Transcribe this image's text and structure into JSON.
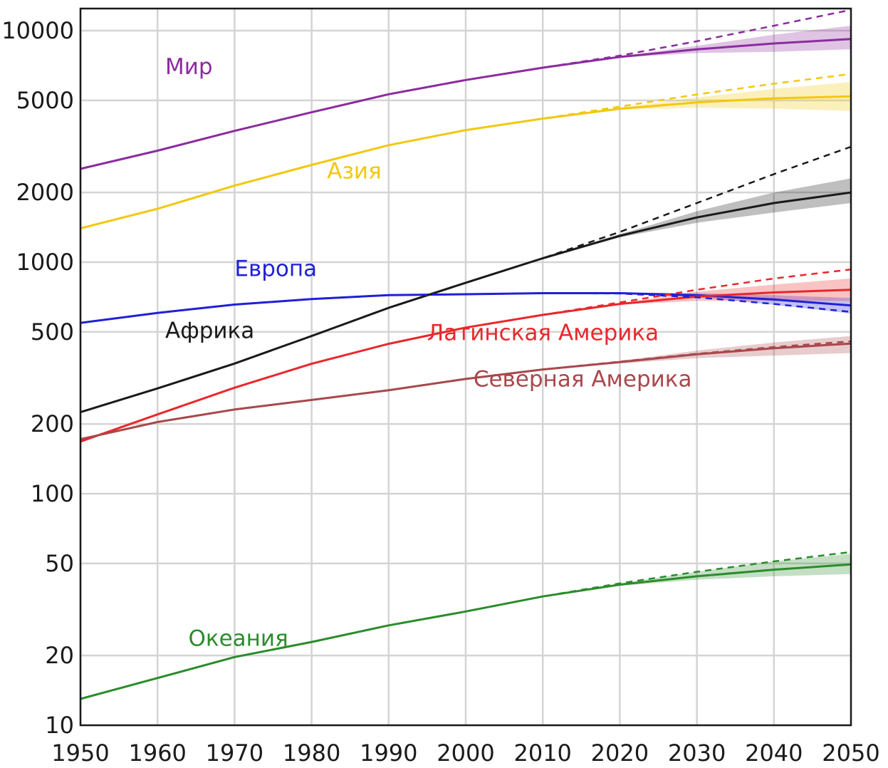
{
  "chart_data": {
    "type": "line",
    "title": "",
    "xlabel": "",
    "ylabel": "",
    "yscale": "log",
    "xlim": [
      1950,
      2050
    ],
    "ylim": [
      10,
      13500
    ],
    "grid": true,
    "x_ticks": [
      1950,
      1960,
      1970,
      1980,
      1990,
      2000,
      2010,
      2020,
      2030,
      2040,
      2050
    ],
    "y_ticks": [
      10,
      20,
      50,
      100,
      200,
      500,
      1000,
      2000,
      5000,
      10000
    ],
    "series": [
      {
        "name": "Мир",
        "color": "#8b2c9e",
        "label_pos": [
          1961,
          6500
        ],
        "x": [
          1950,
          1960,
          1970,
          1980,
          1990,
          2000,
          2010,
          2020,
          2030,
          2040,
          2050
        ],
        "values": [
          2530,
          3030,
          3690,
          4440,
          5310,
          6120,
          6920,
          7700,
          8300,
          8800,
          9200
        ],
        "high": [
          2530,
          3030,
          3690,
          4440,
          5310,
          6120,
          6920,
          7750,
          8600,
          9600,
          10500
        ],
        "low": [
          2530,
          3030,
          3690,
          4440,
          5310,
          6120,
          6920,
          7650,
          8000,
          8100,
          8300
        ],
        "constant": [
          2530,
          3030,
          3690,
          4440,
          5310,
          6120,
          6920,
          7800,
          9000,
          10500,
          12300
        ]
      },
      {
        "name": "Азия",
        "color": "#f2c80f",
        "label_pos": [
          1982,
          2300
        ],
        "x": [
          1950,
          1960,
          1970,
          1980,
          1990,
          2000,
          2010,
          2020,
          2030,
          2040,
          2050
        ],
        "values": [
          1400,
          1700,
          2140,
          2630,
          3200,
          3720,
          4170,
          4600,
          4900,
          5100,
          5200
        ],
        "high": [
          1400,
          1700,
          2140,
          2630,
          3200,
          3720,
          4170,
          4650,
          5150,
          5600,
          6000
        ],
        "low": [
          1400,
          1700,
          2140,
          2630,
          3200,
          3720,
          4170,
          4550,
          4650,
          4600,
          4500
        ],
        "constant": [
          1400,
          1700,
          2140,
          2630,
          3200,
          3720,
          4170,
          4700,
          5300,
          5900,
          6500
        ]
      },
      {
        "name": "Африка",
        "color": "#1a1a1a",
        "label_pos": [
          1961,
          470
        ],
        "x": [
          1950,
          1960,
          1970,
          1980,
          1990,
          2000,
          2010,
          2020,
          2030,
          2040,
          2050
        ],
        "values": [
          225,
          285,
          365,
          480,
          635,
          815,
          1040,
          1300,
          1560,
          1800,
          2000
        ],
        "high": [
          225,
          285,
          365,
          480,
          635,
          815,
          1040,
          1320,
          1660,
          2000,
          2300
        ],
        "low": [
          225,
          285,
          365,
          480,
          635,
          815,
          1040,
          1280,
          1480,
          1640,
          1800
        ],
        "constant": [
          225,
          285,
          365,
          480,
          635,
          815,
          1040,
          1350,
          1800,
          2400,
          3150
        ]
      },
      {
        "name": "Европа",
        "color": "#2020d8",
        "label_pos": [
          1970,
          870
        ],
        "x": [
          1950,
          1960,
          1970,
          1980,
          1990,
          2000,
          2010,
          2020,
          2030,
          2040,
          2050
        ],
        "values": [
          547,
          604,
          656,
          693,
          721,
          727,
          735,
          735,
          720,
          690,
          650
        ],
        "high": [
          547,
          604,
          656,
          693,
          721,
          727,
          735,
          740,
          735,
          720,
          700
        ],
        "low": [
          547,
          604,
          656,
          693,
          721,
          727,
          735,
          730,
          705,
          655,
          600
        ],
        "constant": [
          547,
          604,
          656,
          693,
          721,
          727,
          735,
          732,
          705,
          660,
          610
        ]
      },
      {
        "name": "Латинская Америка",
        "color": "#e8282c",
        "label_pos": [
          1995,
          460
        ],
        "x": [
          1950,
          1960,
          1970,
          1980,
          1990,
          2000,
          2010,
          2020,
          2030,
          2040,
          2050
        ],
        "values": [
          168,
          220,
          287,
          364,
          444,
          522,
          592,
          660,
          710,
          740,
          760
        ],
        "high": [
          168,
          220,
          287,
          364,
          444,
          522,
          592,
          665,
          745,
          800,
          850
        ],
        "low": [
          168,
          220,
          287,
          364,
          444,
          522,
          592,
          655,
          680,
          680,
          680
        ],
        "constant": [
          168,
          220,
          287,
          364,
          444,
          522,
          592,
          670,
          760,
          850,
          930
        ]
      },
      {
        "name": "Северная Америка",
        "color": "#a8484c",
        "label_pos": [
          2001,
          290
        ],
        "x": [
          1950,
          1960,
          1970,
          1980,
          1990,
          2000,
          2010,
          2020,
          2030,
          2040,
          2050
        ],
        "values": [
          172,
          204,
          231,
          254,
          280,
          313,
          344,
          370,
          400,
          425,
          445
        ],
        "high": [
          172,
          204,
          231,
          254,
          280,
          313,
          344,
          375,
          415,
          450,
          480
        ],
        "low": [
          172,
          204,
          231,
          254,
          280,
          313,
          344,
          365,
          385,
          395,
          405
        ],
        "constant": [
          172,
          204,
          231,
          254,
          280,
          313,
          344,
          372,
          402,
          430,
          455
        ]
      },
      {
        "name": "Океания",
        "color": "#2b8c2b",
        "label_pos": [
          1964,
          22
        ],
        "x": [
          1950,
          1960,
          1970,
          1980,
          1990,
          2000,
          2010,
          2020,
          2030,
          2040,
          2050
        ],
        "values": [
          13,
          16,
          19.7,
          22.9,
          27,
          31,
          36,
          40.5,
          44,
          47,
          49.5
        ],
        "high": [
          13,
          16,
          19.7,
          22.9,
          27,
          31,
          36,
          41,
          46,
          51,
          55
        ],
        "low": [
          13,
          16,
          19.7,
          22.9,
          27,
          31,
          36,
          40,
          42.5,
          44,
          45
        ],
        "constant": [
          13,
          16,
          19.7,
          22.9,
          27,
          31,
          36,
          41,
          46,
          51,
          56
        ]
      }
    ]
  }
}
